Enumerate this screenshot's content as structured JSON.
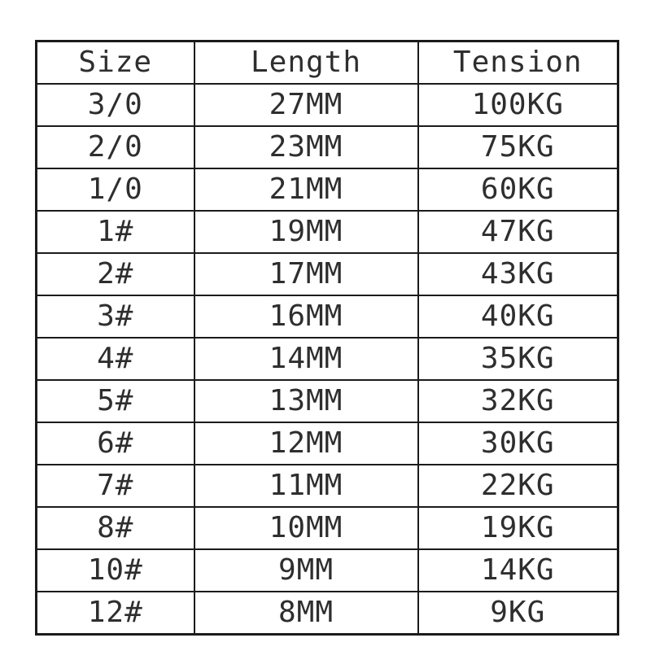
{
  "table": {
    "columns": [
      "Size",
      "Length",
      "Tension"
    ],
    "rows": [
      [
        "3/0",
        "27MM",
        "100KG"
      ],
      [
        "2/0",
        "23MM",
        "75KG"
      ],
      [
        "1/0",
        "21MM",
        "60KG"
      ],
      [
        "1#",
        "19MM",
        "47KG"
      ],
      [
        "2#",
        "17MM",
        "43KG"
      ],
      [
        "3#",
        "16MM",
        "40KG"
      ],
      [
        "4#",
        "14MM",
        "35KG"
      ],
      [
        "5#",
        "13MM",
        "32KG"
      ],
      [
        "6#",
        "12MM",
        "30KG"
      ],
      [
        "7#",
        "11MM",
        "22KG"
      ],
      [
        "8#",
        "10MM",
        "19KG"
      ],
      [
        "10#",
        "9MM",
        "14KG"
      ],
      [
        "12#",
        "8MM",
        "9KG"
      ]
    ]
  },
  "chart_data": {
    "type": "table",
    "title": "",
    "columns": [
      "Size",
      "Length",
      "Tension"
    ],
    "rows": [
      {
        "size": "3/0",
        "length_mm": 27,
        "tension_kg": 100
      },
      {
        "size": "2/0",
        "length_mm": 23,
        "tension_kg": 75
      },
      {
        "size": "1/0",
        "length_mm": 21,
        "tension_kg": 60
      },
      {
        "size": "1#",
        "length_mm": 19,
        "tension_kg": 47
      },
      {
        "size": "2#",
        "length_mm": 17,
        "tension_kg": 43
      },
      {
        "size": "3#",
        "length_mm": 16,
        "tension_kg": 40
      },
      {
        "size": "4#",
        "length_mm": 14,
        "tension_kg": 35
      },
      {
        "size": "5#",
        "length_mm": 13,
        "tension_kg": 32
      },
      {
        "size": "6#",
        "length_mm": 12,
        "tension_kg": 30
      },
      {
        "size": "7#",
        "length_mm": 11,
        "tension_kg": 22
      },
      {
        "size": "8#",
        "length_mm": 10,
        "tension_kg": 19
      },
      {
        "size": "10#",
        "length_mm": 9,
        "tension_kg": 14
      },
      {
        "size": "12#",
        "length_mm": 8,
        "tension_kg": 9
      }
    ]
  },
  "colors": {
    "background": "#ffffff",
    "border": "#1b1b1b",
    "text": "#2e2e2e"
  }
}
